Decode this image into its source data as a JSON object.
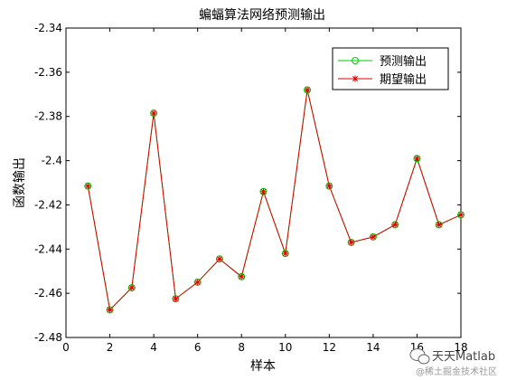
{
  "chart_data": {
    "type": "line",
    "title": "蝙蝠算法网络预测输出",
    "xlabel": "样本",
    "ylabel": "函数输出",
    "xlim": [
      0,
      18
    ],
    "ylim": [
      -2.48,
      -2.34
    ],
    "xticks": [
      0,
      2,
      4,
      6,
      8,
      10,
      12,
      14,
      16,
      18
    ],
    "yticks": [
      -2.48,
      -2.46,
      -2.44,
      -2.42,
      -2.4,
      -2.38,
      -2.36,
      -2.34
    ],
    "x": [
      1,
      2,
      3,
      4,
      5,
      6,
      7,
      8,
      9,
      10,
      11,
      12,
      13,
      14,
      15,
      16,
      17,
      18
    ],
    "series": [
      {
        "name": "预测输出",
        "color": "#00cc00",
        "marker": "circle",
        "values": [
          -2.4115,
          -2.4675,
          -2.4575,
          -2.3785,
          -2.4625,
          -2.455,
          -2.4445,
          -2.4525,
          -2.414,
          -2.442,
          -2.368,
          -2.4115,
          -2.437,
          -2.4345,
          -2.429,
          -2.399,
          -2.429,
          -2.4245
        ]
      },
      {
        "name": "期望输出",
        "color": "#dd0000",
        "marker": "star",
        "values": [
          -2.4115,
          -2.4675,
          -2.4575,
          -2.3785,
          -2.4625,
          -2.455,
          -2.4445,
          -2.4525,
          -2.414,
          -2.442,
          -2.368,
          -2.4115,
          -2.437,
          -2.4345,
          -2.429,
          -2.399,
          -2.429,
          -2.4245
        ]
      }
    ],
    "grid": false,
    "legend_position": "top-right"
  },
  "watermark": {
    "brand": "天天Matlab",
    "sub": "@稀土掘金技术社区"
  }
}
